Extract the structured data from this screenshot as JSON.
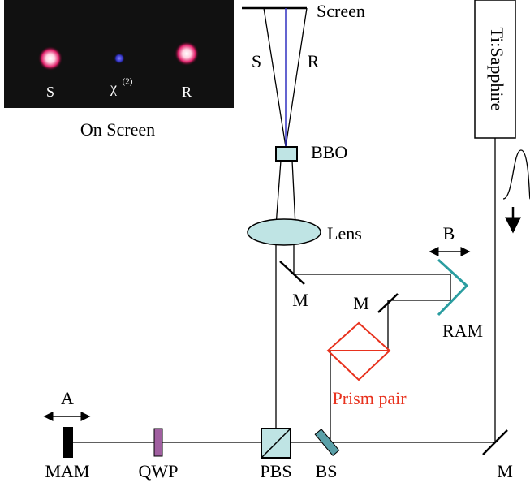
{
  "inset": {
    "spot_s": "S",
    "spot_chi": "χ",
    "spot_chi_sup": "(2)",
    "spot_r": "R",
    "caption": "On Screen"
  },
  "labels": {
    "screen": "Screen",
    "beam_s": "S",
    "beam_r": "R",
    "laser": "Ti:Sapphire",
    "bbo": "BBO",
    "lens": "Lens",
    "b": "B",
    "m_upper": "M",
    "m_middle": "M",
    "ram": "RAM",
    "prism": "Prism pair",
    "a": "A",
    "mam": "MAM",
    "qwp": "QWP",
    "pbs": "PBS",
    "bs": "BS",
    "m_lower": "M"
  }
}
